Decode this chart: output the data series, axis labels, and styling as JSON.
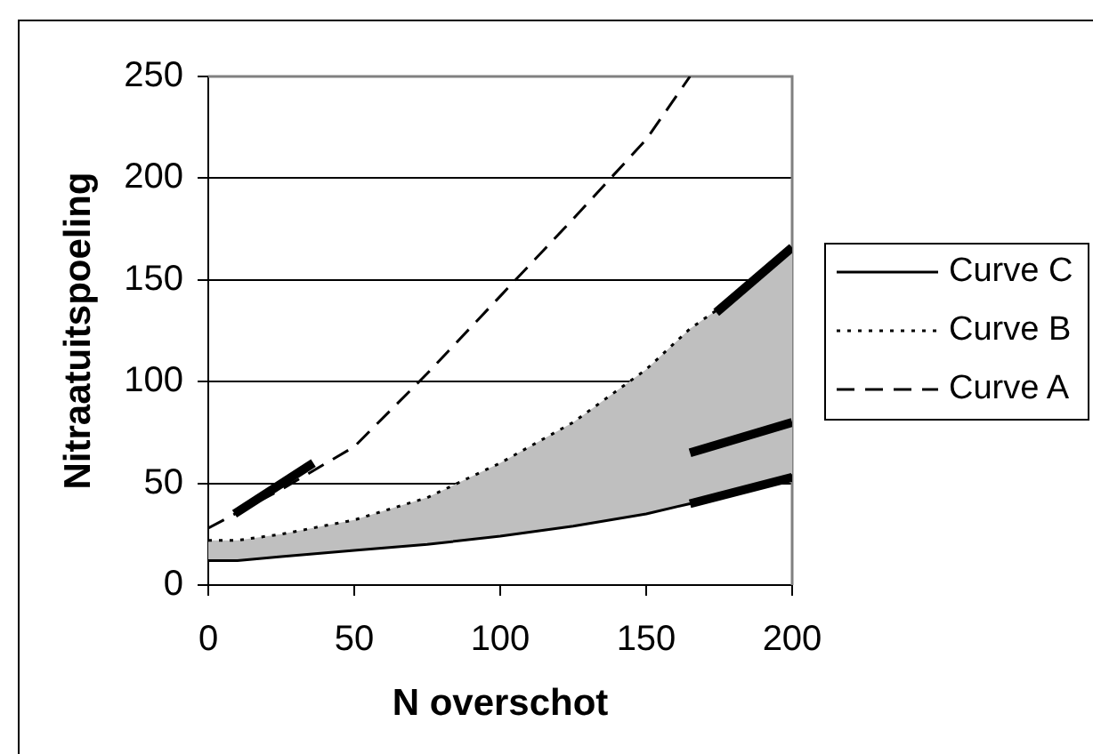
{
  "chart_data": {
    "type": "line",
    "xlabel": "N overschot",
    "ylabel": "Nitraatuitspoeling",
    "xlim": [
      0,
      200
    ],
    "xticks": [
      0,
      50,
      100,
      150,
      200
    ],
    "ylim": [
      0,
      250
    ],
    "yticks": [
      0,
      50,
      100,
      150,
      200,
      250
    ],
    "grid": "y",
    "legend": "right",
    "marker": "none",
    "series": [
      {
        "name": "Curve C",
        "color": "#000000",
        "line_style": "solid",
        "x": [
          0,
          10,
          25,
          50,
          75,
          100,
          125,
          150,
          165,
          175,
          200
        ],
        "values": [
          12,
          12,
          14,
          17,
          20,
          24,
          29,
          35,
          40,
          44,
          54
        ]
      },
      {
        "name": "Curve B",
        "color": "#000000",
        "line_style": "dotted",
        "x": [
          0,
          10,
          25,
          50,
          75,
          100,
          125,
          150,
          165,
          175,
          200
        ],
        "values": [
          22,
          22,
          25,
          32,
          43,
          60,
          80,
          106,
          126,
          136,
          165
        ],
        "lower": [
          12,
          12,
          14,
          17,
          20,
          24,
          29,
          35,
          40,
          44,
          54
        ],
        "upper": [
          22,
          22,
          25,
          32,
          43,
          60,
          80,
          106,
          126,
          136,
          165
        ]
      },
      {
        "name": "Curve A",
        "color": "#000000",
        "line_style": "dashed",
        "x": [
          0,
          25,
          50,
          75,
          100,
          125,
          150,
          165
        ],
        "values": [
          28,
          47,
          68,
          104,
          142,
          180,
          219,
          250
        ]
      },
      {
        "color": "#000000",
        "x": [
          9,
          36
        ],
        "values": [
          35,
          60
        ]
      },
      {
        "color": "#000000",
        "x": [
          165,
          200
        ],
        "values": [
          65,
          80
        ]
      },
      {
        "color": "#000000",
        "x": [
          165,
          200
        ],
        "values": [
          40,
          53
        ]
      },
      {
        "color": "#000000",
        "x": [
          174,
          200
        ],
        "values": [
          134,
          166
        ]
      }
    ]
  }
}
